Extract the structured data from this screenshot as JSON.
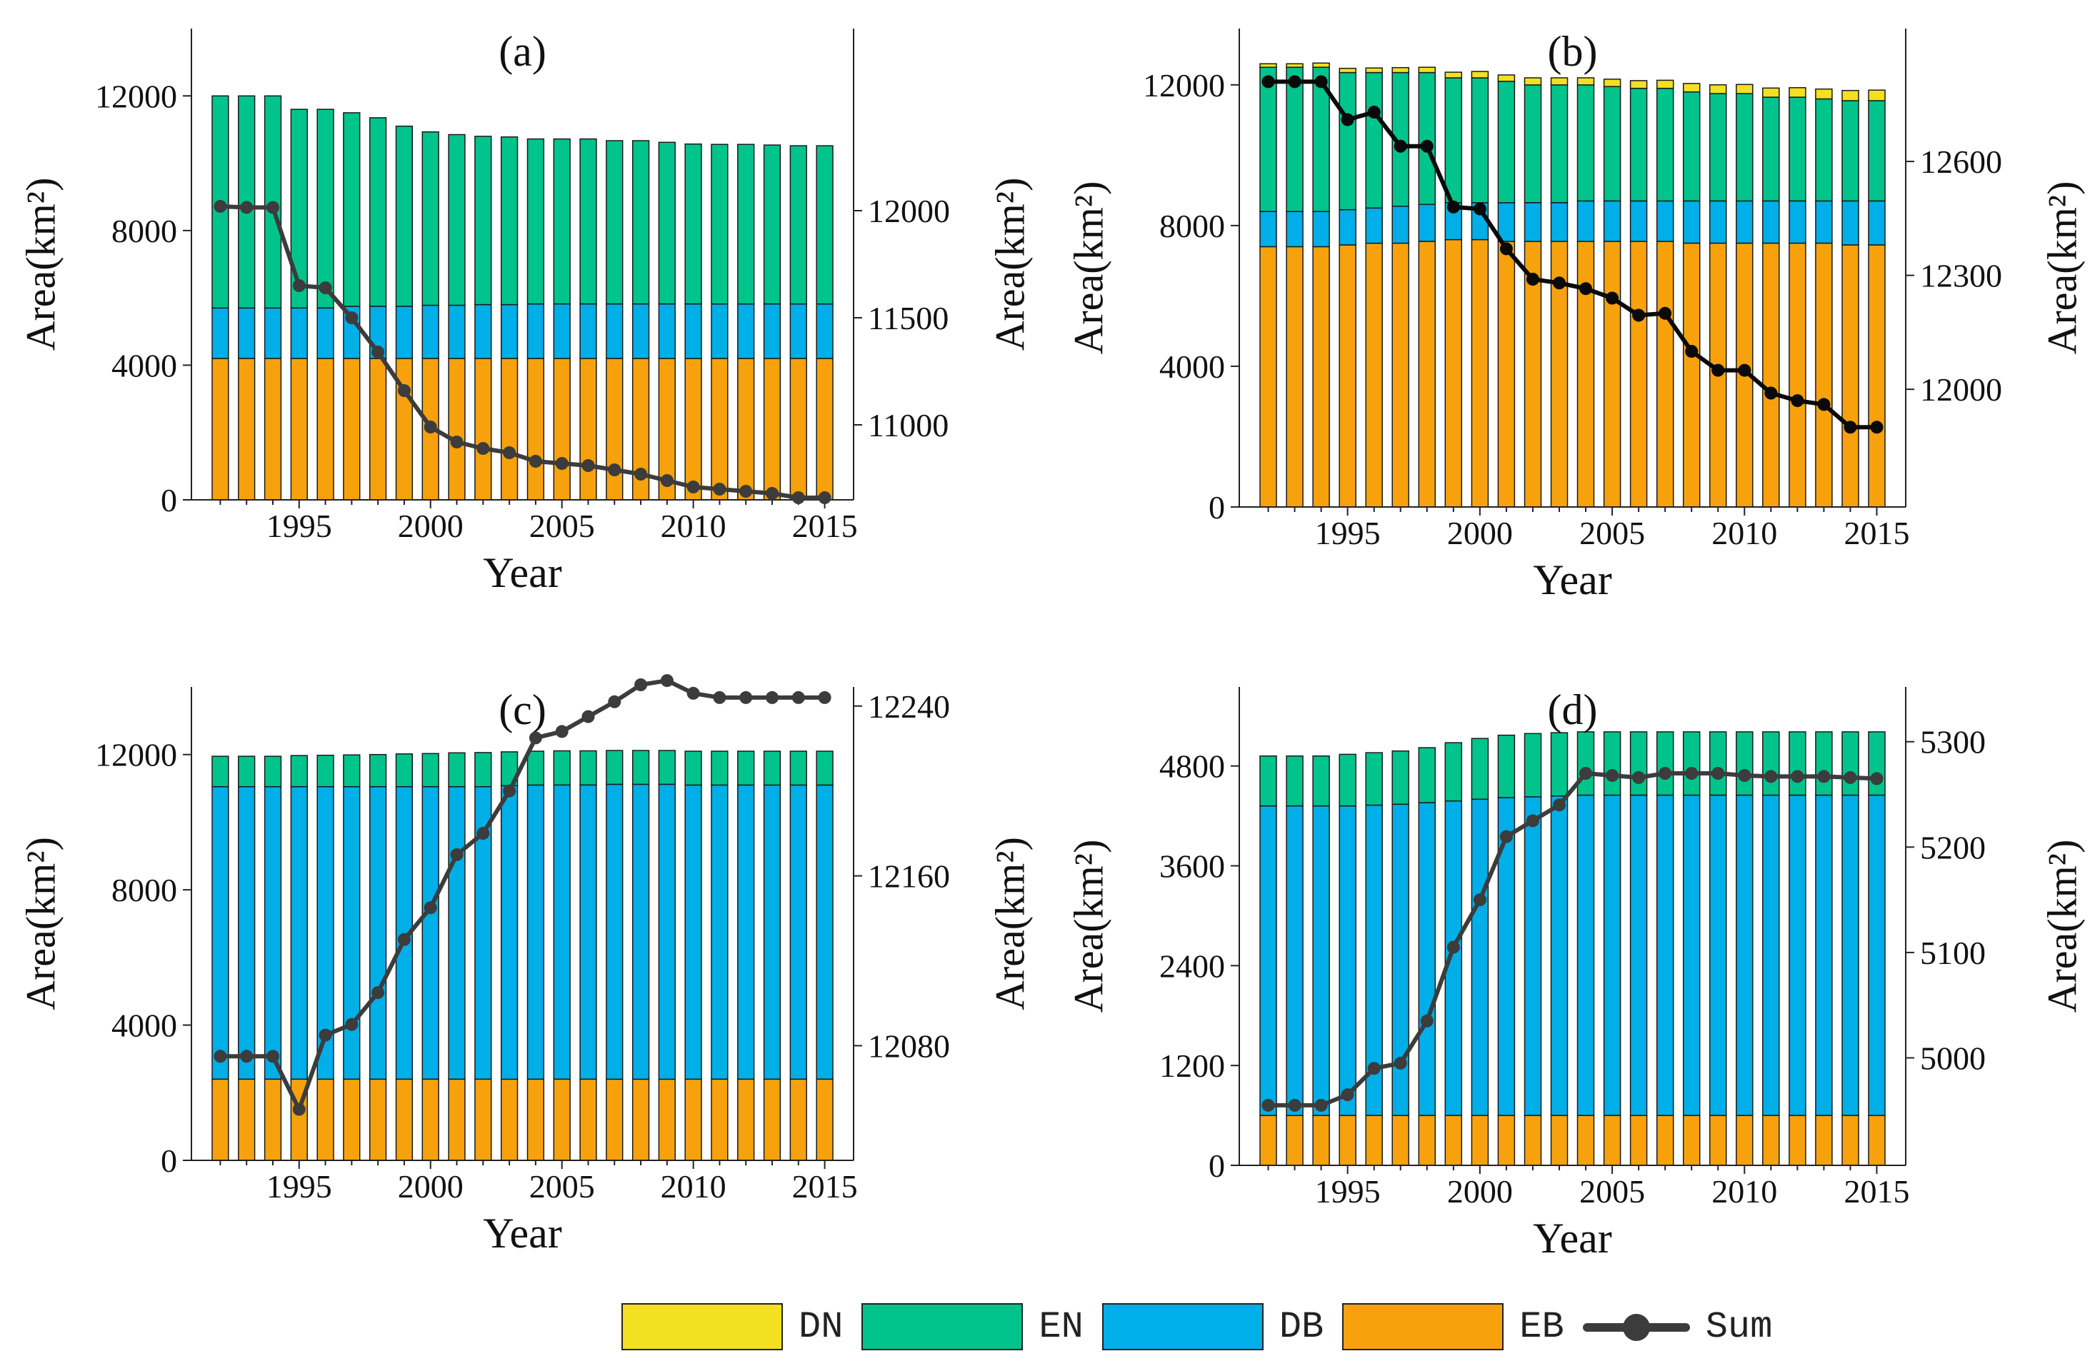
{
  "colors": {
    "DN": "#f2e021",
    "EN": "#00c48c",
    "DB": "#00aee8",
    "EB": "#f7a20c",
    "line_grey": "#3c3c3c",
    "line_black": "#0a0a0a"
  },
  "legend": {
    "items": [
      {
        "key": "DN",
        "label": "DN"
      },
      {
        "key": "EN",
        "label": "EN"
      },
      {
        "key": "DB",
        "label": "DB"
      },
      {
        "key": "EB",
        "label": "EB"
      }
    ],
    "sum_label": "Sum"
  },
  "chart_data": [
    {
      "panel": "(a)",
      "type": "bar",
      "title": "(a)",
      "xlabel": "Year",
      "ylabel": "Area(km²)",
      "ylabel_right": "Area(km²)",
      "x": [
        1992,
        1993,
        1994,
        1995,
        1996,
        1997,
        1998,
        1999,
        2000,
        2001,
        2002,
        2003,
        2004,
        2005,
        2006,
        2007,
        2008,
        2009,
        2010,
        2011,
        2012,
        2013,
        2014,
        2015
      ],
      "x_ticks": [
        1995,
        2000,
        2005,
        2010,
        2015
      ],
      "ylim": [
        0,
        14000
      ],
      "y_ticks": [
        0,
        4000,
        8000,
        12000
      ],
      "ylim_right": [
        10650,
        12850
      ],
      "y_ticks_right": [
        11000,
        11500,
        12000
      ],
      "line_color_key": "line_grey",
      "series": [
        {
          "name": "EB",
          "values": [
            4200,
            4200,
            4200,
            4200,
            4200,
            4200,
            4200,
            4200,
            4200,
            4200,
            4200,
            4200,
            4200,
            4200,
            4200,
            4200,
            4200,
            4200,
            4200,
            4200,
            4200,
            4200,
            4200,
            4200
          ]
        },
        {
          "name": "DB",
          "values": [
            1500,
            1500,
            1500,
            1500,
            1500,
            1550,
            1550,
            1550,
            1580,
            1580,
            1600,
            1600,
            1620,
            1620,
            1620,
            1620,
            1620,
            1620,
            1620,
            1620,
            1620,
            1620,
            1620,
            1620
          ]
        },
        {
          "name": "EN",
          "values": [
            6300,
            6300,
            6300,
            5900,
            5900,
            5750,
            5600,
            5350,
            5150,
            5070,
            5000,
            4980,
            4900,
            4900,
            4900,
            4850,
            4850,
            4800,
            4750,
            4740,
            4740,
            4720,
            4700,
            4700
          ]
        },
        {
          "name": "DN",
          "values": [
            0,
            0,
            0,
            0,
            0,
            0,
            0,
            0,
            0,
            0,
            0,
            0,
            0,
            0,
            0,
            0,
            0,
            0,
            0,
            0,
            0,
            0,
            0,
            0
          ]
        }
      ],
      "sum": [
        12020,
        12015,
        12015,
        11650,
        11640,
        11500,
        11340,
        11160,
        10990,
        10920,
        10890,
        10870,
        10830,
        10820,
        10810,
        10790,
        10770,
        10740,
        10710,
        10700,
        10690,
        10680,
        10660,
        10660
      ]
    },
    {
      "panel": "(b)",
      "type": "bar",
      "title": "(b)",
      "xlabel": "Year",
      "ylabel": "Area(km²)",
      "ylabel_right": "Area(km²)",
      "x": [
        1992,
        1993,
        1994,
        1995,
        1996,
        1997,
        1998,
        1999,
        2000,
        2001,
        2002,
        2003,
        2004,
        2005,
        2006,
        2007,
        2008,
        2009,
        2010,
        2011,
        2012,
        2013,
        2014,
        2015
      ],
      "x_ticks": [
        1995,
        2000,
        2005,
        2010,
        2015
      ],
      "ylim": [
        0,
        13600
      ],
      "y_ticks": [
        0,
        4000,
        8000,
        12000
      ],
      "ylim_right": [
        11690,
        12950
      ],
      "y_ticks_right": [
        12000,
        12300,
        12600
      ],
      "line_color_key": "line_black",
      "series": [
        {
          "name": "EB",
          "values": [
            7400,
            7400,
            7400,
            7450,
            7500,
            7500,
            7550,
            7600,
            7600,
            7550,
            7550,
            7550,
            7550,
            7550,
            7550,
            7550,
            7500,
            7500,
            7500,
            7500,
            7500,
            7500,
            7450,
            7450
          ]
        },
        {
          "name": "DB",
          "values": [
            1000,
            1000,
            1000,
            1000,
            1000,
            1050,
            1050,
            1050,
            1050,
            1100,
            1100,
            1100,
            1150,
            1150,
            1150,
            1150,
            1200,
            1200,
            1200,
            1200,
            1200,
            1200,
            1250,
            1250
          ]
        },
        {
          "name": "EN",
          "values": [
            4100,
            4100,
            4100,
            3900,
            3850,
            3800,
            3750,
            3550,
            3550,
            3450,
            3350,
            3350,
            3300,
            3250,
            3200,
            3200,
            3100,
            3050,
            3050,
            2950,
            2950,
            2900,
            2850,
            2850
          ]
        },
        {
          "name": "DN",
          "values": [
            100,
            100,
            120,
            120,
            130,
            140,
            150,
            160,
            180,
            180,
            200,
            200,
            200,
            210,
            220,
            230,
            240,
            250,
            260,
            260,
            270,
            280,
            290,
            300
          ]
        }
      ],
      "sum": [
        12810,
        12810,
        12810,
        12710,
        12730,
        12640,
        12640,
        12480,
        12475,
        12370,
        12290,
        12280,
        12265,
        12240,
        12195,
        12200,
        12100,
        12050,
        12050,
        11990,
        11970,
        11960,
        11900,
        11900
      ]
    },
    {
      "panel": "(c)",
      "type": "bar",
      "title": "(c)",
      "xlabel": "Year",
      "ylabel": "Area(km²)",
      "ylabel_right": "Area(km²)",
      "x": [
        1992,
        1993,
        1994,
        1995,
        1996,
        1997,
        1998,
        1999,
        2000,
        2001,
        2002,
        2003,
        2004,
        2005,
        2006,
        2007,
        2008,
        2009,
        2010,
        2011,
        2012,
        2013,
        2014,
        2015
      ],
      "x_ticks": [
        1995,
        2000,
        2005,
        2010,
        2015
      ],
      "ylim": [
        0,
        14000
      ],
      "y_ticks": [
        0,
        4000,
        8000,
        12000
      ],
      "ylim_right": [
        12026,
        12249
      ],
      "y_ticks_right": [
        12080,
        12160,
        12240
      ],
      "line_color_key": "line_grey",
      "series": [
        {
          "name": "EB",
          "values": [
            2400,
            2400,
            2400,
            2400,
            2400,
            2400,
            2400,
            2400,
            2400,
            2400,
            2400,
            2400,
            2400,
            2400,
            2400,
            2400,
            2400,
            2400,
            2400,
            2400,
            2400,
            2400,
            2400,
            2400
          ]
        },
        {
          "name": "DB",
          "values": [
            8650,
            8650,
            8650,
            8650,
            8650,
            8650,
            8650,
            8650,
            8650,
            8650,
            8650,
            8680,
            8700,
            8700,
            8700,
            8720,
            8720,
            8720,
            8700,
            8700,
            8700,
            8700,
            8700,
            8700
          ]
        },
        {
          "name": "EN",
          "values": [
            900,
            900,
            900,
            920,
            930,
            940,
            950,
            970,
            980,
            1000,
            1010,
            1000,
            1000,
            1010,
            1010,
            1000,
            1000,
            1000,
            1000,
            1000,
            1000,
            1000,
            1000,
            1000
          ]
        },
        {
          "name": "DN",
          "values": [
            0,
            0,
            0,
            0,
            0,
            0,
            0,
            0,
            0,
            0,
            0,
            0,
            0,
            0,
            0,
            0,
            0,
            0,
            0,
            0,
            0,
            0,
            0,
            0
          ]
        }
      ],
      "sum": [
        12075,
        12075,
        12075,
        12050,
        12085,
        12090,
        12105,
        12130,
        12145,
        12170,
        12180,
        12200,
        12225,
        12228,
        12235,
        12242,
        12250,
        12252,
        12246,
        12244,
        12244,
        12244,
        12244,
        12244
      ]
    },
    {
      "panel": "(d)",
      "type": "bar",
      "title": "(d)",
      "xlabel": "Year",
      "ylabel": "Area(km²)",
      "ylabel_right": "Area(km²)",
      "x": [
        1992,
        1993,
        1994,
        1995,
        1996,
        1997,
        1998,
        1999,
        2000,
        2001,
        2002,
        2003,
        2004,
        2005,
        2006,
        2007,
        2008,
        2009,
        2010,
        2011,
        2012,
        2013,
        2014,
        2015
      ],
      "x_ticks": [
        1995,
        2000,
        2005,
        2010,
        2015
      ],
      "ylim": [
        0,
        5750
      ],
      "y_ticks": [
        0,
        1200,
        2400,
        3600,
        4800
      ],
      "ylim_right": [
        4898,
        5352
      ],
      "y_ticks_right": [
        5000,
        5100,
        5200,
        5300
      ],
      "line_color_key": "line_grey",
      "series": [
        {
          "name": "EB",
          "values": [
            600,
            600,
            600,
            600,
            600,
            600,
            600,
            600,
            600,
            600,
            600,
            600,
            600,
            600,
            600,
            600,
            600,
            600,
            600,
            600,
            600,
            600,
            600,
            600
          ]
        },
        {
          "name": "DB",
          "values": [
            3720,
            3720,
            3720,
            3720,
            3730,
            3740,
            3760,
            3780,
            3800,
            3820,
            3830,
            3840,
            3850,
            3850,
            3850,
            3850,
            3850,
            3850,
            3850,
            3850,
            3850,
            3850,
            3850,
            3850
          ]
        },
        {
          "name": "EN",
          "values": [
            600,
            600,
            600,
            620,
            630,
            640,
            660,
            700,
            730,
            750,
            760,
            760,
            760,
            760,
            760,
            760,
            760,
            760,
            760,
            760,
            760,
            760,
            760,
            760
          ]
        },
        {
          "name": "DN",
          "values": [
            0,
            0,
            0,
            0,
            0,
            0,
            0,
            0,
            0,
            0,
            0,
            0,
            0,
            0,
            0,
            0,
            0,
            0,
            0,
            0,
            0,
            0,
            0,
            0
          ]
        }
      ],
      "sum": [
        4955,
        4955,
        4955,
        4965,
        4990,
        4995,
        5035,
        5105,
        5150,
        5210,
        5225,
        5240,
        5270,
        5268,
        5266,
        5270,
        5270,
        5270,
        5268,
        5267,
        5267,
        5267,
        5266,
        5265
      ]
    }
  ]
}
